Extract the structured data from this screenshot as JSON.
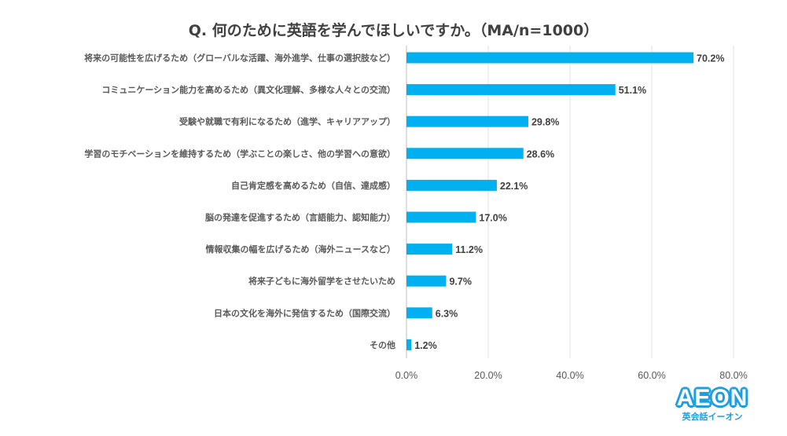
{
  "chart_data": {
    "type": "bar",
    "orientation": "horizontal",
    "title": "Q. 何のために英語を学んでほしいですか。（MA/n=1000）",
    "categories": [
      "将来の可能性を広げるため（グローバルな活躍、海外進学、仕事の選択肢など）",
      "コミュニケーション能力を高めるため（異文化理解、多様な人々との交流）",
      "受験や就職で有利になるため（進学、キャリアアップ）",
      "学習のモチベーションを維持するため（学ぶことの楽しさ、他の学習への意欲）",
      "自己肯定感を高めるため（自信、達成感）",
      "脳の発達を促進するため（言語能力、認知能力）",
      "情報収集の幅を広げるため（海外ニュースなど）",
      "将来子どもに海外留学をさせたいため",
      "日本の文化を海外に発信するため（国際交流）",
      "その他"
    ],
    "values": [
      70.2,
      51.1,
      29.8,
      28.6,
      22.1,
      17.0,
      11.2,
      9.7,
      6.3,
      1.2
    ],
    "value_labels": [
      "70.2%",
      "51.1%",
      "29.8%",
      "28.6%",
      "22.1%",
      "17.0%",
      "11.2%",
      "9.7%",
      "6.3%",
      "1.2%"
    ],
    "xlim": [
      0,
      80
    ],
    "ticks": [
      0,
      20,
      40,
      60,
      80
    ],
    "tick_labels": [
      "0.0%",
      "20.0%",
      "40.0%",
      "60.0%",
      "80.0%"
    ],
    "grid": true,
    "bar_color": "#00b0f0"
  },
  "logo": {
    "word": "AEON",
    "sub": "英会話イーオン",
    "color": "#1a9fe0"
  }
}
